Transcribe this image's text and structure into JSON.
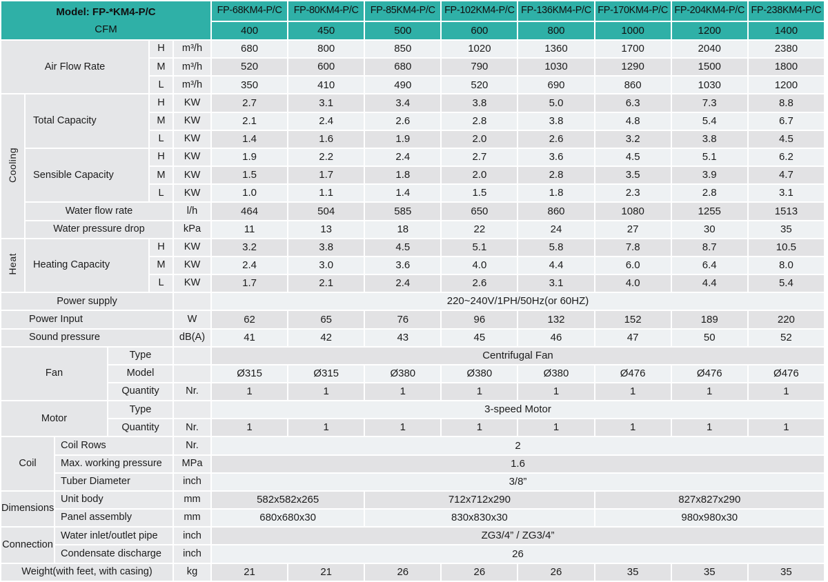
{
  "colors": {
    "accent_teal": "#2fb0a7",
    "stripe_light": "#eef1f3",
    "stripe_gray": "#e2e2e4",
    "label_gray": "#e5e6e8"
  },
  "header": {
    "model_title": "Model: FP-*KM4-P/C",
    "cfm_label": "CFM",
    "models": [
      "FP-68KM4-P/C",
      "FP-80KM4-P/C",
      "FP-85KM4-P/C",
      "FP-102KM4-P/C",
      "FP-136KM4-P/C",
      "FP-170KM4-P/C",
      "FP-204KM4-P/C",
      "FP-238KM4-P/C"
    ],
    "cfm": [
      "400",
      "450",
      "500",
      "600",
      "800",
      "1000",
      "1200",
      "1400"
    ]
  },
  "rows": [
    {
      "cells": [
        {
          "t": "Air Flow Rate",
          "k": "l",
          "cs": 4,
          "rs": 3
        },
        {
          "t": "H",
          "k": "s"
        },
        {
          "t": "m³/h",
          "k": "u"
        },
        {
          "t": "680",
          "k": "d"
        },
        {
          "t": "800",
          "k": "d"
        },
        {
          "t": "850",
          "k": "d"
        },
        {
          "t": "1020",
          "k": "d"
        },
        {
          "t": "1360",
          "k": "d"
        },
        {
          "t": "1700",
          "k": "d"
        },
        {
          "t": "2040",
          "k": "d"
        },
        {
          "t": "2380",
          "k": "d"
        }
      ]
    },
    {
      "cells": [
        {
          "t": "M",
          "k": "s"
        },
        {
          "t": "m³/h",
          "k": "u"
        },
        {
          "t": "520",
          "k": "d"
        },
        {
          "t": "600",
          "k": "d"
        },
        {
          "t": "680",
          "k": "d"
        },
        {
          "t": "790",
          "k": "d"
        },
        {
          "t": "1030",
          "k": "d"
        },
        {
          "t": "1290",
          "k": "d"
        },
        {
          "t": "1500",
          "k": "d"
        },
        {
          "t": "1800",
          "k": "d"
        }
      ]
    },
    {
      "cells": [
        {
          "t": "L",
          "k": "s"
        },
        {
          "t": "m³/h",
          "k": "u"
        },
        {
          "t": "350",
          "k": "d"
        },
        {
          "t": "410",
          "k": "d"
        },
        {
          "t": "490",
          "k": "d"
        },
        {
          "t": "520",
          "k": "d"
        },
        {
          "t": "690",
          "k": "d"
        },
        {
          "t": "860",
          "k": "d"
        },
        {
          "t": "1030",
          "k": "d"
        },
        {
          "t": "1200",
          "k": "d"
        }
      ]
    },
    {
      "cells": [
        {
          "t": "Cooling",
          "k": "g",
          "rs": 8
        },
        {
          "t": "Total Capacity",
          "k": "ll",
          "cs": 3,
          "rs": 3
        },
        {
          "t": "H",
          "k": "s"
        },
        {
          "t": "KW",
          "k": "u"
        },
        {
          "t": "2.7",
          "k": "d"
        },
        {
          "t": "3.1",
          "k": "d"
        },
        {
          "t": "3.4",
          "k": "d"
        },
        {
          "t": "3.8",
          "k": "d"
        },
        {
          "t": "5.0",
          "k": "d"
        },
        {
          "t": "6.3",
          "k": "d"
        },
        {
          "t": "7.3",
          "k": "d"
        },
        {
          "t": "8.8",
          "k": "d"
        }
      ]
    },
    {
      "cells": [
        {
          "t": "M",
          "k": "s"
        },
        {
          "t": "KW",
          "k": "u"
        },
        {
          "t": "2.1",
          "k": "d"
        },
        {
          "t": "2.4",
          "k": "d"
        },
        {
          "t": "2.6",
          "k": "d"
        },
        {
          "t": "2.8",
          "k": "d"
        },
        {
          "t": "3.8",
          "k": "d"
        },
        {
          "t": "4.8",
          "k": "d"
        },
        {
          "t": "5.4",
          "k": "d"
        },
        {
          "t": "6.7",
          "k": "d"
        }
      ]
    },
    {
      "cells": [
        {
          "t": "L",
          "k": "s"
        },
        {
          "t": "KW",
          "k": "u"
        },
        {
          "t": "1.4",
          "k": "d"
        },
        {
          "t": "1.6",
          "k": "d"
        },
        {
          "t": "1.9",
          "k": "d"
        },
        {
          "t": "2.0",
          "k": "d"
        },
        {
          "t": "2.6",
          "k": "d"
        },
        {
          "t": "3.2",
          "k": "d"
        },
        {
          "t": "3.8",
          "k": "d"
        },
        {
          "t": "4.5",
          "k": "d"
        }
      ]
    },
    {
      "cells": [
        {
          "t": "Sensible Capacity",
          "k": "ll",
          "cs": 3,
          "rs": 3
        },
        {
          "t": "H",
          "k": "s"
        },
        {
          "t": "KW",
          "k": "u"
        },
        {
          "t": "1.9",
          "k": "d"
        },
        {
          "t": "2.2",
          "k": "d"
        },
        {
          "t": "2.4",
          "k": "d"
        },
        {
          "t": "2.7",
          "k": "d"
        },
        {
          "t": "3.6",
          "k": "d"
        },
        {
          "t": "4.5",
          "k": "d"
        },
        {
          "t": "5.1",
          "k": "d"
        },
        {
          "t": "6.2",
          "k": "d"
        }
      ]
    },
    {
      "cells": [
        {
          "t": "M",
          "k": "s"
        },
        {
          "t": "KW",
          "k": "u"
        },
        {
          "t": "1.5",
          "k": "d"
        },
        {
          "t": "1.7",
          "k": "d"
        },
        {
          "t": "1.8",
          "k": "d"
        },
        {
          "t": "2.0",
          "k": "d"
        },
        {
          "t": "2.8",
          "k": "d"
        },
        {
          "t": "3.5",
          "k": "d"
        },
        {
          "t": "3.9",
          "k": "d"
        },
        {
          "t": "4.7",
          "k": "d"
        }
      ]
    },
    {
      "cells": [
        {
          "t": "L",
          "k": "s"
        },
        {
          "t": "KW",
          "k": "u"
        },
        {
          "t": "1.0",
          "k": "d"
        },
        {
          "t": "1.1",
          "k": "d"
        },
        {
          "t": "1.4",
          "k": "d"
        },
        {
          "t": "1.5",
          "k": "d"
        },
        {
          "t": "1.8",
          "k": "d"
        },
        {
          "t": "2.3",
          "k": "d"
        },
        {
          "t": "2.8",
          "k": "d"
        },
        {
          "t": "3.1",
          "k": "d"
        }
      ]
    },
    {
      "cells": [
        {
          "t": "Water flow rate",
          "k": "l",
          "cs": 4
        },
        {
          "t": "l/h",
          "k": "u"
        },
        {
          "t": "464",
          "k": "d"
        },
        {
          "t": "504",
          "k": "d"
        },
        {
          "t": "585",
          "k": "d"
        },
        {
          "t": "650",
          "k": "d"
        },
        {
          "t": "860",
          "k": "d"
        },
        {
          "t": "1080",
          "k": "d"
        },
        {
          "t": "1255",
          "k": "d"
        },
        {
          "t": "1513",
          "k": "d"
        }
      ]
    },
    {
      "cells": [
        {
          "t": "Water pressure drop",
          "k": "l",
          "cs": 4
        },
        {
          "t": "kPa",
          "k": "u"
        },
        {
          "t": "11",
          "k": "d"
        },
        {
          "t": "13",
          "k": "d"
        },
        {
          "t": "18",
          "k": "d"
        },
        {
          "t": "22",
          "k": "d"
        },
        {
          "t": "24",
          "k": "d"
        },
        {
          "t": "27",
          "k": "d"
        },
        {
          "t": "30",
          "k": "d"
        },
        {
          "t": "35",
          "k": "d"
        }
      ]
    },
    {
      "cells": [
        {
          "t": "Heat",
          "k": "g",
          "rs": 3
        },
        {
          "t": "Heating Capacity",
          "k": "ll",
          "cs": 3,
          "rs": 3
        },
        {
          "t": "H",
          "k": "s"
        },
        {
          "t": "KW",
          "k": "u"
        },
        {
          "t": "3.2",
          "k": "d"
        },
        {
          "t": "3.8",
          "k": "d"
        },
        {
          "t": "4.5",
          "k": "d"
        },
        {
          "t": "5.1",
          "k": "d"
        },
        {
          "t": "5.8",
          "k": "d"
        },
        {
          "t": "7.8",
          "k": "d"
        },
        {
          "t": "8.7",
          "k": "d"
        },
        {
          "t": "10.5",
          "k": "d"
        }
      ]
    },
    {
      "cells": [
        {
          "t": "M",
          "k": "s"
        },
        {
          "t": "KW",
          "k": "u"
        },
        {
          "t": "2.4",
          "k": "d"
        },
        {
          "t": "3.0",
          "k": "d"
        },
        {
          "t": "3.6",
          "k": "d"
        },
        {
          "t": "4.0",
          "k": "d"
        },
        {
          "t": "4.4",
          "k": "d"
        },
        {
          "t": "6.0",
          "k": "d"
        },
        {
          "t": "6.4",
          "k": "d"
        },
        {
          "t": "8.0",
          "k": "d"
        }
      ]
    },
    {
      "cells": [
        {
          "t": "L",
          "k": "s"
        },
        {
          "t": "KW",
          "k": "u"
        },
        {
          "t": "1.7",
          "k": "d"
        },
        {
          "t": "2.1",
          "k": "d"
        },
        {
          "t": "2.4",
          "k": "d"
        },
        {
          "t": "2.6",
          "k": "d"
        },
        {
          "t": "3.1",
          "k": "d"
        },
        {
          "t": "4.0",
          "k": "d"
        },
        {
          "t": "4.4",
          "k": "d"
        },
        {
          "t": "5.4",
          "k": "d"
        }
      ]
    },
    {
      "cells": [
        {
          "t": "Power supply",
          "k": "l",
          "cs": 5
        },
        {
          "t": "",
          "k": "u"
        },
        {
          "t": "220~240V/1PH/50Hz(or 60HZ)",
          "k": "d",
          "cs": 8
        }
      ]
    },
    {
      "cells": [
        {
          "t": "Power Input",
          "k": "lp",
          "cs": 5
        },
        {
          "t": "W",
          "k": "u"
        },
        {
          "t": "62",
          "k": "d"
        },
        {
          "t": "65",
          "k": "d"
        },
        {
          "t": "76",
          "k": "d"
        },
        {
          "t": "96",
          "k": "d"
        },
        {
          "t": "132",
          "k": "d"
        },
        {
          "t": "152",
          "k": "d"
        },
        {
          "t": "189",
          "k": "d"
        },
        {
          "t": "220",
          "k": "d"
        }
      ]
    },
    {
      "cells": [
        {
          "t": "Sound pressure",
          "k": "lp",
          "cs": 5
        },
        {
          "t": "dB(A)",
          "k": "u"
        },
        {
          "t": "41",
          "k": "d"
        },
        {
          "t": "42",
          "k": "d"
        },
        {
          "t": "43",
          "k": "d"
        },
        {
          "t": "45",
          "k": "d"
        },
        {
          "t": "46",
          "k": "d"
        },
        {
          "t": "47",
          "k": "d"
        },
        {
          "t": "50",
          "k": "d"
        },
        {
          "t": "52",
          "k": "d"
        }
      ]
    },
    {
      "cells": [
        {
          "t": "Fan",
          "k": "l",
          "cs": 3,
          "rs": 3
        },
        {
          "t": "Type",
          "k": "s",
          "cs": 2
        },
        {
          "t": "",
          "k": "u"
        },
        {
          "t": "Centrifugal Fan",
          "k": "d",
          "cs": 8
        }
      ]
    },
    {
      "cells": [
        {
          "t": "Model",
          "k": "s",
          "cs": 2
        },
        {
          "t": "",
          "k": "u"
        },
        {
          "t": "Ø315",
          "k": "d"
        },
        {
          "t": "Ø315",
          "k": "d"
        },
        {
          "t": "Ø380",
          "k": "d"
        },
        {
          "t": "Ø380",
          "k": "d"
        },
        {
          "t": "Ø380",
          "k": "d"
        },
        {
          "t": "Ø476",
          "k": "d"
        },
        {
          "t": "Ø476",
          "k": "d"
        },
        {
          "t": "Ø476",
          "k": "d"
        }
      ]
    },
    {
      "cells": [
        {
          "t": "Quantity",
          "k": "s",
          "cs": 2
        },
        {
          "t": "Nr.",
          "k": "u"
        },
        {
          "t": "1",
          "k": "d"
        },
        {
          "t": "1",
          "k": "d"
        },
        {
          "t": "1",
          "k": "d"
        },
        {
          "t": "1",
          "k": "d"
        },
        {
          "t": "1",
          "k": "d"
        },
        {
          "t": "1",
          "k": "d"
        },
        {
          "t": "1",
          "k": "d"
        },
        {
          "t": "1",
          "k": "d"
        }
      ]
    },
    {
      "cells": [
        {
          "t": "Motor",
          "k": "l",
          "cs": 3,
          "rs": 2
        },
        {
          "t": "Type",
          "k": "s",
          "cs": 2
        },
        {
          "t": "",
          "k": "u"
        },
        {
          "t": "3-speed Motor",
          "k": "d",
          "cs": 8
        }
      ]
    },
    {
      "cells": [
        {
          "t": "Quantity",
          "k": "s",
          "cs": 2
        },
        {
          "t": "Nr.",
          "k": "u"
        },
        {
          "t": "1",
          "k": "d"
        },
        {
          "t": "1",
          "k": "d"
        },
        {
          "t": "1",
          "k": "d"
        },
        {
          "t": "1",
          "k": "d"
        },
        {
          "t": "1",
          "k": "d"
        },
        {
          "t": "1",
          "k": "d"
        },
        {
          "t": "1",
          "k": "d"
        },
        {
          "t": "1",
          "k": "d"
        }
      ]
    },
    {
      "cells": [
        {
          "t": "Coil",
          "k": "l",
          "cs": 2,
          "rs": 3
        },
        {
          "t": "Coil Rows",
          "k": "sl",
          "cs": 3
        },
        {
          "t": "Nr.",
          "k": "u"
        },
        {
          "t": "2",
          "k": "d",
          "cs": 8
        }
      ]
    },
    {
      "cells": [
        {
          "t": "Max. working pressure",
          "k": "sl",
          "cs": 3
        },
        {
          "t": "MPa",
          "k": "u"
        },
        {
          "t": "1.6",
          "k": "d",
          "cs": 8
        }
      ]
    },
    {
      "cells": [
        {
          "t": "Tuber Diameter",
          "k": "sl",
          "cs": 3
        },
        {
          "t": "inch",
          "k": "u"
        },
        {
          "t": "3/8”",
          "k": "d",
          "cs": 8
        }
      ]
    },
    {
      "cells": [
        {
          "t": "Dimensions",
          "k": "l",
          "cs": 2,
          "rs": 2
        },
        {
          "t": "Unit body",
          "k": "sl",
          "cs": 3
        },
        {
          "t": "mm",
          "k": "u"
        },
        {
          "t": "582x582x265",
          "k": "d",
          "cs": 2
        },
        {
          "t": "712x712x290",
          "k": "d",
          "cs": 3
        },
        {
          "t": "827x827x290",
          "k": "d",
          "cs": 3
        }
      ]
    },
    {
      "cells": [
        {
          "t": "Panel assembly",
          "k": "sl",
          "cs": 3
        },
        {
          "t": "mm",
          "k": "u"
        },
        {
          "t": "680x680x30",
          "k": "d",
          "cs": 2
        },
        {
          "t": "830x830x30",
          "k": "d",
          "cs": 3
        },
        {
          "t": "980x980x30",
          "k": "d",
          "cs": 3
        }
      ]
    },
    {
      "cells": [
        {
          "t": "Connection",
          "k": "l",
          "cs": 2,
          "rs": 2
        },
        {
          "t": "Water inlet/outlet pipe",
          "k": "sl",
          "cs": 3
        },
        {
          "t": "inch",
          "k": "u"
        },
        {
          "t": "ZG3/4” / ZG3/4”",
          "k": "d",
          "cs": 8
        }
      ]
    },
    {
      "cells": [
        {
          "t": "Condensate discharge",
          "k": "sl",
          "cs": 3
        },
        {
          "t": "inch",
          "k": "u"
        },
        {
          "t": "26",
          "k": "d",
          "cs": 8
        }
      ]
    },
    {
      "cells": [
        {
          "t": "Weight(with feet, with casing)",
          "k": "l",
          "cs": 5
        },
        {
          "t": "kg",
          "k": "u"
        },
        {
          "t": "21",
          "k": "d"
        },
        {
          "t": "21",
          "k": "d"
        },
        {
          "t": "26",
          "k": "d"
        },
        {
          "t": "26",
          "k": "d"
        },
        {
          "t": "26",
          "k": "d"
        },
        {
          "t": "35",
          "k": "d"
        },
        {
          "t": "35",
          "k": "d"
        },
        {
          "t": "35",
          "k": "d"
        }
      ]
    }
  ]
}
